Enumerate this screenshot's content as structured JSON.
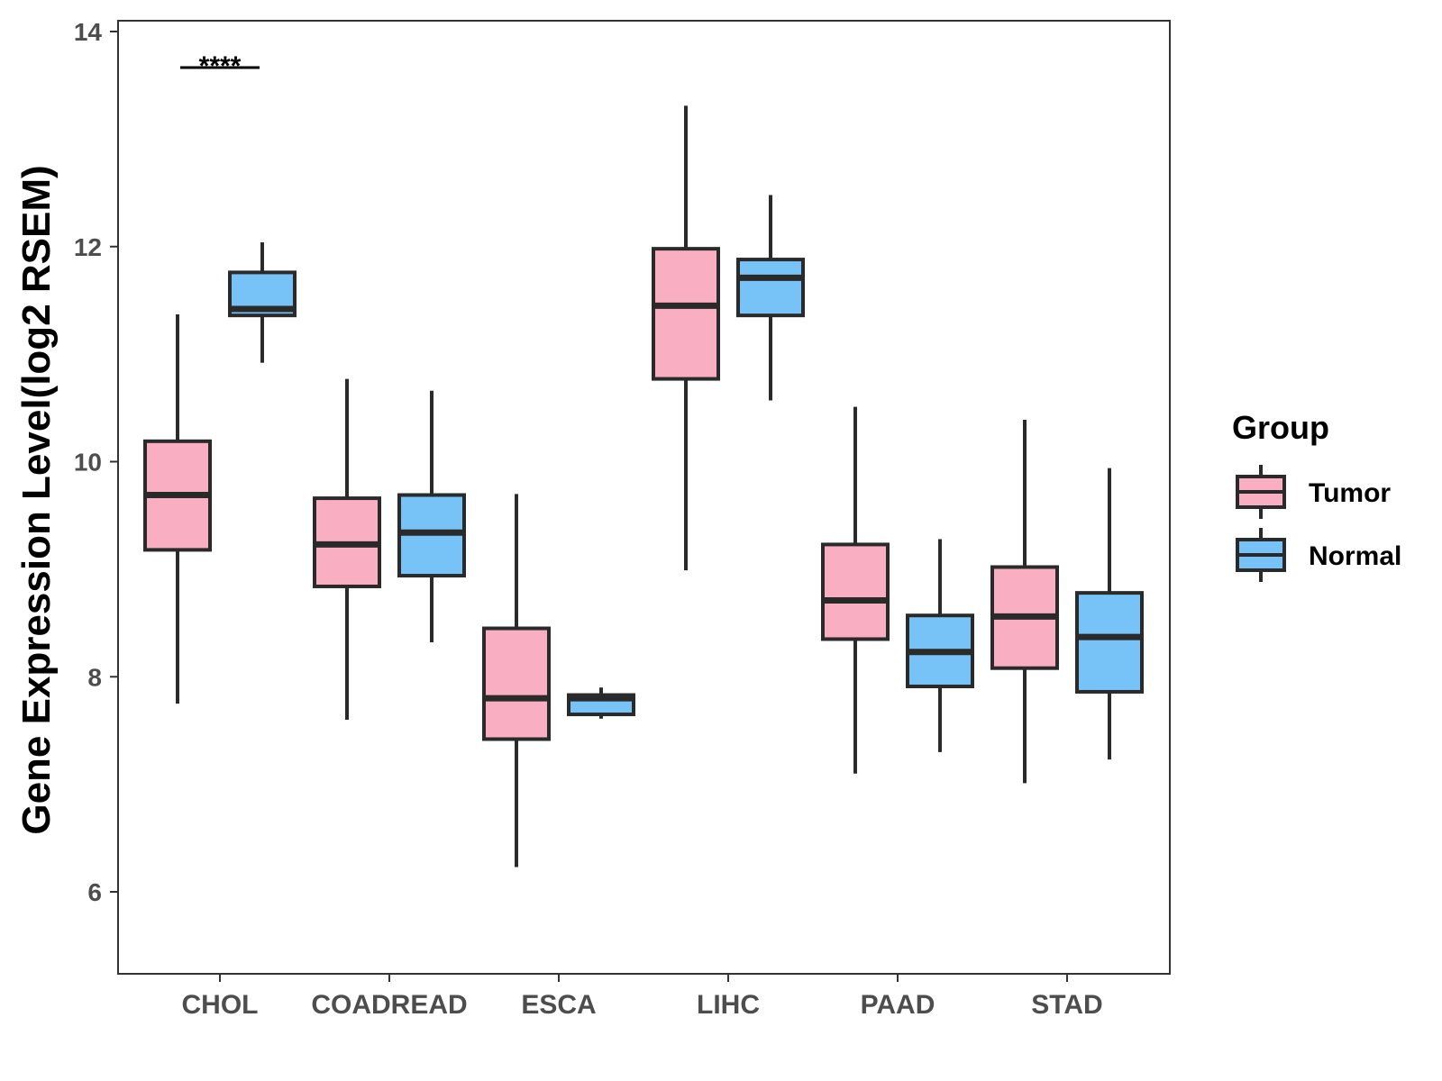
{
  "chart_data": {
    "type": "boxplot",
    "ylabel": "Gene Expression Level(log2 RSEM)",
    "xlabel": "",
    "ylim": [
      5.3,
      14.1
    ],
    "yticks": [
      6,
      8,
      10,
      12,
      14
    ],
    "categories": [
      "CHOL",
      "COADREAD",
      "ESCA",
      "LIHC",
      "PAAD",
      "STAD"
    ],
    "legend": {
      "title": "Group",
      "position": "right",
      "entries": [
        "Tumor",
        "Normal"
      ]
    },
    "colors": {
      "Tumor": "#F9AFC1",
      "Normal": "#77C2F7",
      "outline": "#2a2a2a"
    },
    "series": [
      {
        "name": "Tumor",
        "boxes": [
          {
            "whisker_low": 7.75,
            "q1": 9.18,
            "median": 9.69,
            "q3": 10.19,
            "whisker_high": 11.37
          },
          {
            "whisker_low": 7.6,
            "q1": 8.84,
            "median": 9.23,
            "q3": 9.66,
            "whisker_high": 10.77
          },
          {
            "whisker_low": 6.23,
            "q1": 7.42,
            "median": 7.8,
            "q3": 8.45,
            "whisker_high": 9.7
          },
          {
            "whisker_low": 8.99,
            "q1": 10.77,
            "median": 11.45,
            "q3": 11.98,
            "whisker_high": 13.31
          },
          {
            "whisker_low": 7.1,
            "q1": 8.35,
            "median": 8.71,
            "q3": 9.23,
            "whisker_high": 10.51
          },
          {
            "whisker_low": 7.01,
            "q1": 8.08,
            "median": 8.56,
            "q3": 9.02,
            "whisker_high": 10.39
          }
        ]
      },
      {
        "name": "Normal",
        "boxes": [
          {
            "whisker_low": 10.92,
            "q1": 11.36,
            "median": 11.42,
            "q3": 11.76,
            "whisker_high": 12.04
          },
          {
            "whisker_low": 8.32,
            "q1": 8.94,
            "median": 9.34,
            "q3": 9.69,
            "whisker_high": 10.66
          },
          {
            "whisker_low": 7.61,
            "q1": 7.65,
            "median": 7.8,
            "q3": 7.83,
            "whisker_high": 7.9
          },
          {
            "whisker_low": 10.57,
            "q1": 11.36,
            "median": 11.71,
            "q3": 11.88,
            "whisker_high": 12.48
          },
          {
            "whisker_low": 7.3,
            "q1": 7.91,
            "median": 8.23,
            "q3": 8.57,
            "whisker_high": 9.28
          },
          {
            "whisker_low": 7.23,
            "q1": 7.86,
            "median": 8.37,
            "q3": 8.78,
            "whisker_high": 9.94
          }
        ]
      }
    ],
    "annotations": [
      {
        "category": "CHOL",
        "label": "****"
      }
    ]
  }
}
